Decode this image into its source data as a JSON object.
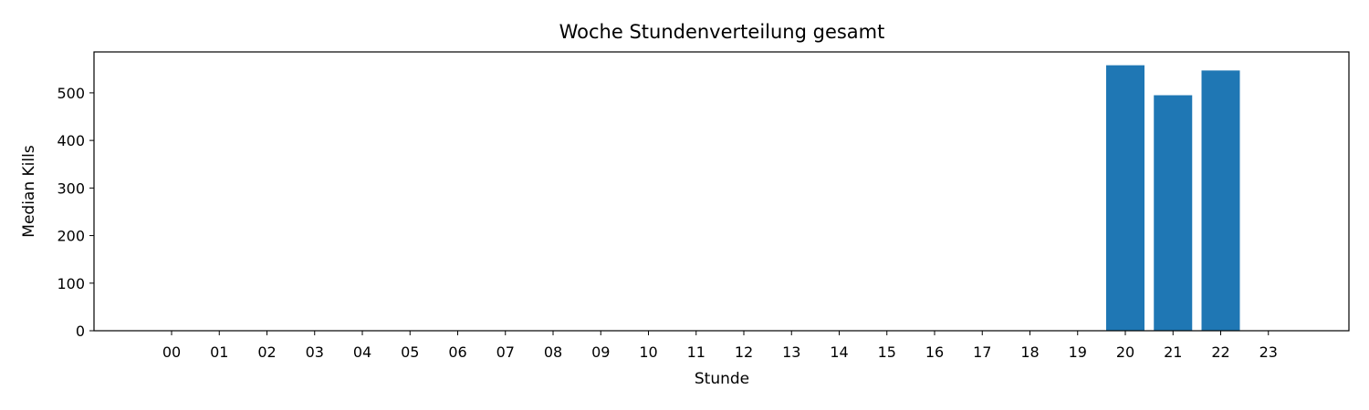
{
  "chart_data": {
    "type": "bar",
    "title": "Woche Stundenverteilung gesamt",
    "xlabel": "Stunde",
    "ylabel": "Median Kills",
    "categories": [
      "00",
      "01",
      "02",
      "03",
      "04",
      "05",
      "06",
      "07",
      "08",
      "09",
      "10",
      "11",
      "12",
      "13",
      "14",
      "15",
      "16",
      "17",
      "18",
      "19",
      "20",
      "21",
      "22",
      "23"
    ],
    "values": [
      0,
      0,
      0,
      0,
      0,
      0,
      0,
      0,
      0,
      0,
      0,
      0,
      0,
      0,
      0,
      0,
      0,
      0,
      0,
      0,
      558,
      495,
      547,
      0
    ],
    "ylim": [
      0,
      586
    ],
    "yticks": [
      0,
      100,
      200,
      300,
      400,
      500
    ],
    "bar_color": "#1f77b4",
    "grid": false,
    "legend": "none"
  }
}
